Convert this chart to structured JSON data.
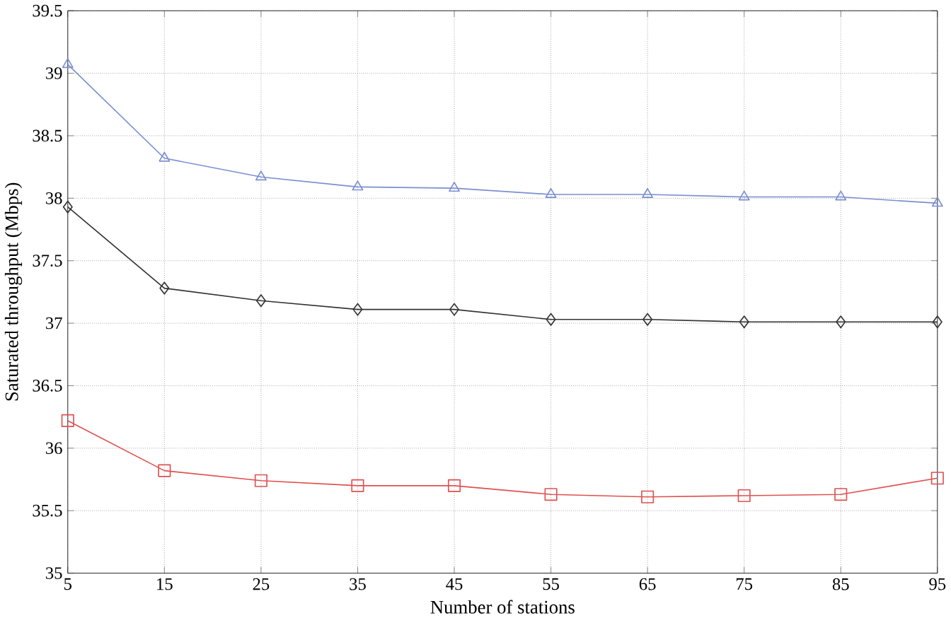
{
  "chart_data": {
    "type": "line",
    "xlabel": "Number of stations",
    "ylabel": "Saturated throughput (Mbps)",
    "x": [
      5,
      15,
      25,
      35,
      45,
      55,
      65,
      75,
      85,
      95
    ],
    "series": [
      {
        "color": "#7b8fd0",
        "marker": "triangle",
        "values": [
          39.07,
          38.32,
          38.17,
          38.09,
          38.08,
          38.03,
          38.03,
          38.01,
          38.01,
          37.96
        ]
      },
      {
        "color": "#333333",
        "marker": "diamond",
        "values": [
          37.93,
          37.28,
          37.18,
          37.11,
          37.11,
          37.03,
          37.03,
          37.01,
          37.01,
          37.01
        ]
      },
      {
        "color": "#e05050",
        "marker": "square",
        "values": [
          36.22,
          35.82,
          35.74,
          35.7,
          35.7,
          35.63,
          35.61,
          35.62,
          35.63,
          35.76
        ]
      }
    ],
    "xlim": [
      5,
      95
    ],
    "xticks": [
      5,
      15,
      25,
      35,
      45,
      55,
      65,
      75,
      85,
      95
    ],
    "ylim": [
      35,
      39.5
    ],
    "yticks": [
      35,
      35.5,
      36,
      36.5,
      37,
      37.5,
      38,
      38.5,
      39,
      39.5
    ],
    "grid": true,
    "line_style": "solid"
  }
}
